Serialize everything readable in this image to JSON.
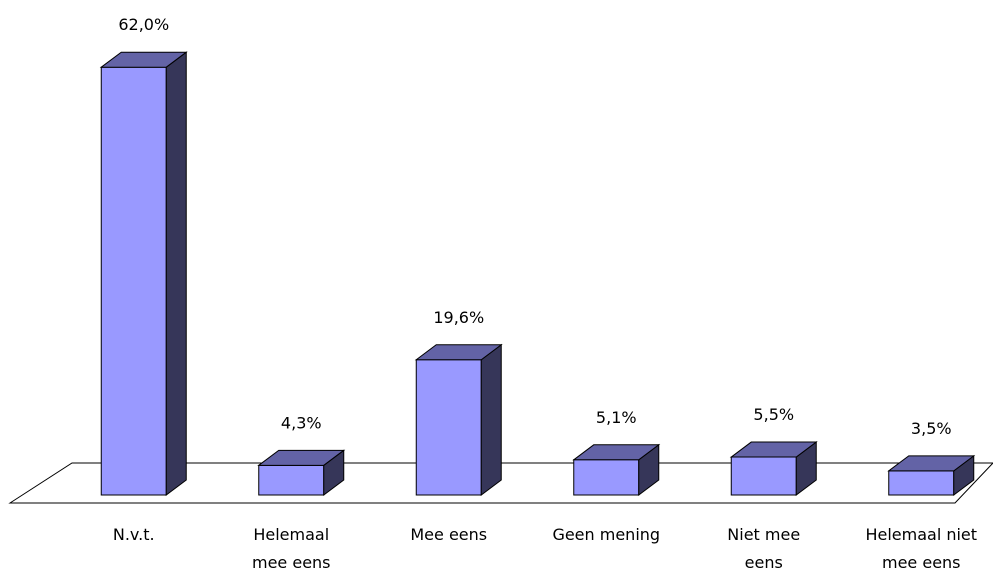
{
  "chart_data": {
    "type": "bar3d",
    "categories": [
      "N.v.t.",
      "Helemaal\nmee eens",
      "Mee eens",
      "Geen mening",
      "Niet mee\neens",
      "Helemaal niet\nmee eens"
    ],
    "values": [
      62.0,
      4.3,
      19.6,
      5.1,
      5.5,
      3.5
    ],
    "value_labels": [
      "62,0%",
      "4,3%",
      "19,6%",
      "5,1%",
      "5,5%",
      "3,5%"
    ],
    "color": "#9999ff"
  }
}
